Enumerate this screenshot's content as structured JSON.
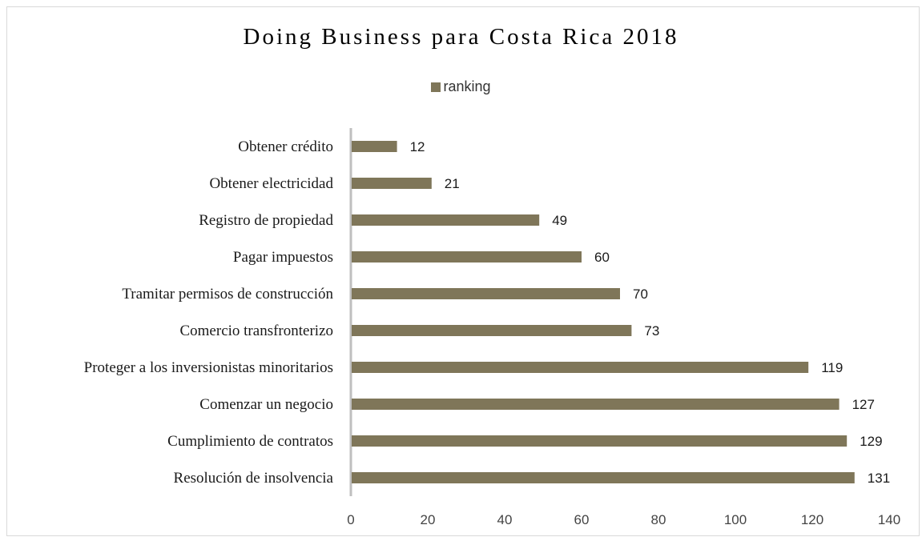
{
  "chart_data": {
    "type": "bar",
    "orientation": "horizontal",
    "title": "Doing Business para Costa Rica 2018",
    "legend": {
      "position": "top",
      "entries": [
        "ranking"
      ]
    },
    "categories": [
      "Obtener crédito",
      "Obtener electricidad",
      "Registro de propiedad",
      "Pagar impuestos",
      "Tramitar permisos de construcción",
      "Comercio transfronterizo",
      "Proteger a los inversionistas minoritarios",
      "Comenzar un negocio",
      "Cumplimiento de contratos",
      "Resolución de insolvencia"
    ],
    "series": [
      {
        "name": "ranking",
        "values": [
          12,
          21,
          49,
          60,
          70,
          73,
          119,
          127,
          129,
          131
        ],
        "color": "#7f7659"
      }
    ],
    "xlim": [
      0,
      140
    ],
    "xticks": [
      0,
      20,
      40,
      60,
      80,
      100,
      120,
      140
    ],
    "grid": false,
    "data_labels": true
  }
}
